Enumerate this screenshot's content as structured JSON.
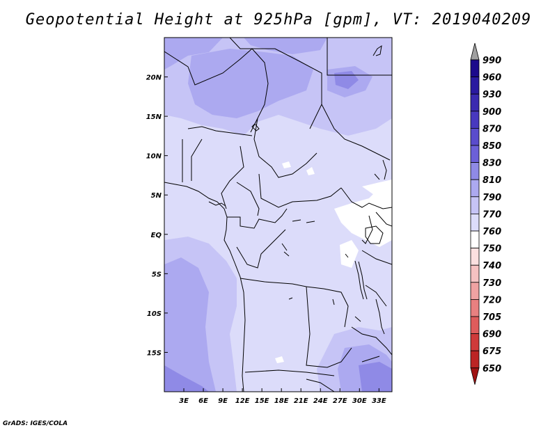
{
  "title": "Geopotential Height at 925hPa [gpm], VT: 2019040209",
  "credit": "GrADS: IGES/COLA",
  "map": {
    "lon_range": [
      0,
      35
    ],
    "lat_range": [
      -20,
      25
    ],
    "lon_ticks": [
      {
        "value": 3,
        "label": "3E"
      },
      {
        "value": 6,
        "label": "6E"
      },
      {
        "value": 9,
        "label": "9E"
      },
      {
        "value": 12,
        "label": "12E"
      },
      {
        "value": 15,
        "label": "15E"
      },
      {
        "value": 18,
        "label": "18E"
      },
      {
        "value": 21,
        "label": "21E"
      },
      {
        "value": 24,
        "label": "24E"
      },
      {
        "value": 27,
        "label": "27E"
      },
      {
        "value": 30,
        "label": "30E"
      },
      {
        "value": 33,
        "label": "33E"
      }
    ],
    "lat_ticks": [
      {
        "value": 20,
        "label": "20N"
      },
      {
        "value": 15,
        "label": "15N"
      },
      {
        "value": 10,
        "label": "10N"
      },
      {
        "value": 5,
        "label": "5N"
      },
      {
        "value": 0,
        "label": "EQ"
      },
      {
        "value": -5,
        "label": "5S"
      },
      {
        "value": -10,
        "label": "10S"
      },
      {
        "value": -15,
        "label": "15S"
      }
    ],
    "fill_colors": {
      "c760": "#ffffff",
      "c770": "#dcdcfa",
      "c790": "#c6c4f6",
      "c810": "#aca9f0",
      "c830": "#8f8ae6"
    }
  },
  "colorbar": {
    "levels": [
      "990",
      "960",
      "930",
      "900",
      "870",
      "850",
      "830",
      "810",
      "790",
      "770",
      "760",
      "750",
      "740",
      "730",
      "720",
      "705",
      "690",
      "675",
      "650"
    ],
    "colors": [
      "#1c0a8c",
      "#2a1aa0",
      "#3a2ab0",
      "#4838bf",
      "#5a4ccc",
      "#6c60d8",
      "#8f8ae6",
      "#aca9f0",
      "#c6c4f6",
      "#dcdcfa",
      "#ffffff",
      "#fbe0e0",
      "#f6c2c2",
      "#f0a2a2",
      "#e88080",
      "#de5c5c",
      "#cf3a3a",
      "#bc2424",
      "#a01414"
    ],
    "over_color": "#a0a0a0"
  }
}
